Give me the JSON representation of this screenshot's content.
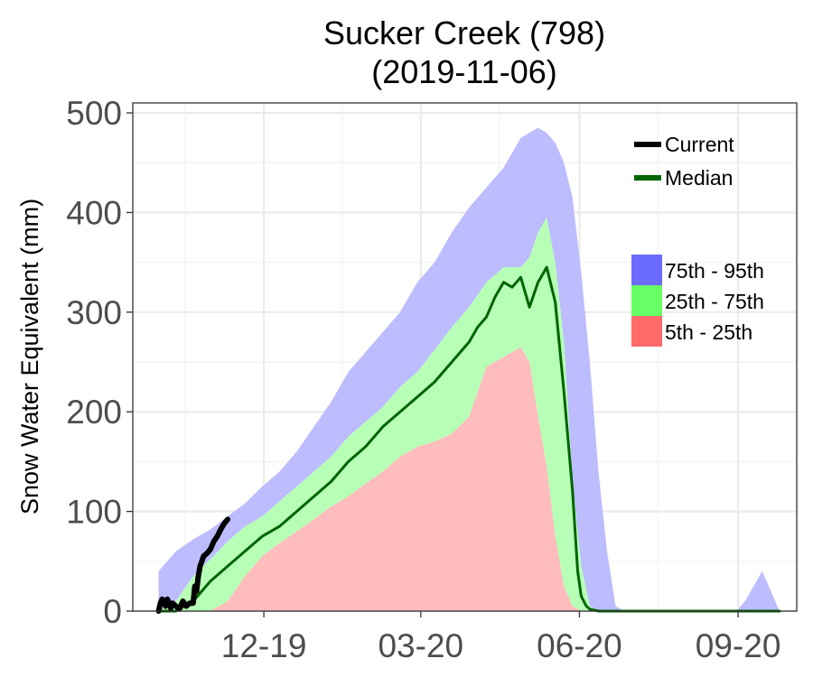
{
  "chart_data": {
    "type": "area",
    "title_line1": "Sucker Creek (798)",
    "title_line2": "(2019-11-06)",
    "ylabel": "Snow Water Equivalent (mm)",
    "xlabel": "",
    "ylim": [
      0,
      510
    ],
    "y_ticks": [
      0,
      100,
      200,
      300,
      400,
      500
    ],
    "x_ticks": [
      {
        "label": "12-19",
        "day": 61
      },
      {
        "label": "03-20",
        "day": 152
      },
      {
        "label": "06-20",
        "day": 244
      },
      {
        "label": "09-20",
        "day": 336
      }
    ],
    "x_range_days": [
      -15,
      370
    ],
    "grid": true,
    "legend_lines": [
      {
        "label": "Current",
        "color": "#000000"
      },
      {
        "label": "Median",
        "color": "#006400"
      }
    ],
    "legend_bands": [
      {
        "label": "75th - 95th",
        "color": "#6b6bff"
      },
      {
        "label": "25th - 75th",
        "color": "#66ff66"
      },
      {
        "label": "5th - 25th",
        "color": "#ff6b6b"
      }
    ],
    "band_colors": {
      "p75_95": "#bcbcff",
      "p25_75": "#b7ffb7",
      "p5_25": "#ffbcbc"
    },
    "percentiles": {
      "days": [
        0,
        10,
        20,
        30,
        40,
        50,
        60,
        70,
        80,
        90,
        100,
        110,
        120,
        130,
        140,
        150,
        160,
        170,
        180,
        190,
        200,
        210,
        215,
        220,
        225,
        230,
        235,
        240,
        245,
        250,
        255,
        260,
        265,
        270,
        275,
        335,
        340,
        345,
        350,
        355,
        360
      ],
      "p5": [
        0,
        0,
        0,
        0,
        0,
        0,
        0,
        0,
        0,
        0,
        0,
        0,
        0,
        0,
        0,
        0,
        0,
        0,
        0,
        0,
        0,
        0,
        0,
        0,
        0,
        0,
        0,
        0,
        0,
        0,
        0,
        0,
        0,
        0,
        0,
        0,
        0,
        0,
        0,
        0,
        0
      ],
      "p25": [
        0,
        0,
        0,
        0,
        10,
        35,
        55,
        68,
        80,
        92,
        105,
        115,
        128,
        140,
        155,
        165,
        170,
        178,
        195,
        245,
        255,
        265,
        250,
        195,
        145,
        75,
        25,
        5,
        0,
        0,
        0,
        0,
        0,
        0,
        0,
        0,
        0,
        0,
        0,
        0,
        0
      ],
      "p75": [
        0,
        10,
        35,
        52,
        70,
        85,
        95,
        110,
        125,
        140,
        155,
        175,
        190,
        205,
        225,
        240,
        262,
        285,
        305,
        330,
        345,
        345,
        355,
        380,
        395,
        350,
        270,
        130,
        45,
        5,
        0,
        0,
        0,
        0,
        0,
        0,
        0,
        0,
        0,
        0,
        0
      ],
      "p95": [
        40,
        60,
        72,
        82,
        95,
        108,
        125,
        140,
        160,
        185,
        210,
        240,
        260,
        280,
        300,
        330,
        350,
        380,
        405,
        425,
        445,
        475,
        480,
        485,
        480,
        470,
        450,
        415,
        340,
        250,
        140,
        60,
        5,
        0,
        0,
        0,
        10,
        25,
        40,
        20,
        0
      ]
    },
    "series": [
      {
        "name": "Median",
        "days": [
          0,
          10,
          20,
          30,
          40,
          50,
          60,
          70,
          80,
          90,
          100,
          110,
          120,
          130,
          140,
          150,
          160,
          170,
          180,
          185,
          190,
          195,
          200,
          205,
          210,
          215,
          220,
          225,
          230,
          235,
          240,
          243,
          245,
          248,
          250,
          255,
          260,
          270,
          300,
          330,
          360
        ],
        "values": [
          0,
          0,
          10,
          30,
          45,
          60,
          75,
          85,
          100,
          115,
          130,
          150,
          165,
          185,
          200,
          215,
          230,
          250,
          270,
          285,
          295,
          315,
          330,
          325,
          335,
          305,
          330,
          345,
          310,
          220,
          120,
          40,
          15,
          5,
          2,
          0,
          0,
          0,
          0,
          0,
          0
        ]
      },
      {
        "name": "Current",
        "days": [
          0,
          1,
          2,
          3,
          4,
          5,
          6,
          7,
          8,
          10,
          12,
          14,
          16,
          18,
          20,
          21,
          22,
          23,
          24,
          25,
          26,
          28,
          30,
          32,
          34,
          36,
          38,
          40
        ],
        "values": [
          0,
          8,
          12,
          10,
          5,
          12,
          8,
          3,
          8,
          5,
          2,
          10,
          5,
          8,
          8,
          25,
          20,
          35,
          45,
          50,
          55,
          58,
          62,
          70,
          75,
          82,
          88,
          92
        ]
      }
    ]
  }
}
